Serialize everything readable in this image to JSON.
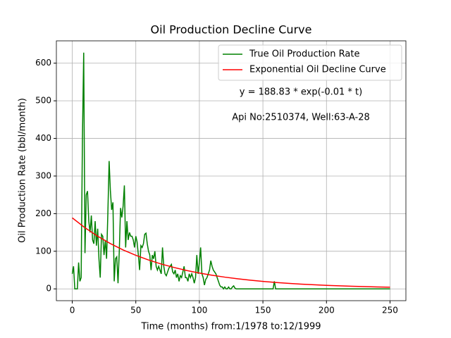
{
  "chart_data": {
    "type": "line",
    "title": "Oil Production Decline Curve",
    "xlabel": "Time (months) from:1/1978 to:12/1999",
    "ylabel": "Oil Production Rate (bbl/month)",
    "annotations": [
      "y = 188.83 * exp(-0.01 * t)",
      "Api No:2510374, Well:63-A-28"
    ],
    "xlim": [
      -12.5,
      262.5
    ],
    "ylim": [
      -31.4,
      659.4
    ],
    "xticks": [
      0,
      50,
      100,
      150,
      200,
      250
    ],
    "yticks": [
      0,
      100,
      200,
      300,
      400,
      500,
      600
    ],
    "grid": true,
    "legend": "upper right",
    "series": [
      {
        "name": "True Oil Production Rate",
        "color": "#008000",
        "x": [
          0,
          1,
          2,
          3,
          4,
          5,
          6,
          7,
          8,
          9,
          10,
          11,
          12,
          13,
          14,
          15,
          16,
          17,
          18,
          19,
          20,
          21,
          22,
          23,
          24,
          25,
          26,
          27,
          28,
          29,
          30,
          31,
          32,
          33,
          34,
          35,
          36,
          37,
          38,
          39,
          40,
          41,
          42,
          43,
          44,
          45,
          46,
          47,
          48,
          49,
          50,
          51,
          52,
          53,
          54,
          55,
          56,
          57,
          58,
          59,
          60,
          61,
          62,
          63,
          64,
          65,
          66,
          67,
          68,
          69,
          70,
          71,
          72,
          73,
          74,
          75,
          76,
          77,
          78,
          79,
          80,
          81,
          82,
          83,
          84,
          85,
          86,
          87,
          88,
          89,
          90,
          91,
          92,
          93,
          94,
          95,
          96,
          97,
          98,
          99,
          100,
          101,
          102,
          103,
          104,
          105,
          106,
          107,
          108,
          109,
          110,
          111,
          112,
          113,
          114,
          115,
          116,
          117,
          118,
          119,
          120,
          121,
          122,
          123,
          124,
          125,
          126,
          127,
          128,
          129,
          130,
          158,
          159,
          160,
          250
        ],
        "values": [
          40,
          60,
          0,
          0,
          0,
          70,
          20,
          30,
          400,
          628,
          95,
          250,
          260,
          180,
          150,
          195,
          130,
          120,
          180,
          115,
          160,
          80,
          30,
          145,
          140,
          90,
          130,
          80,
          200,
          340,
          260,
          210,
          230,
          20,
          80,
          85,
          15,
          100,
          215,
          190,
          220,
          275,
          110,
          180,
          130,
          150,
          140,
          140,
          130,
          110,
          140,
          125,
          90,
          50,
          115,
          110,
          120,
          145,
          148,
          120,
          100,
          90,
          50,
          90,
          80,
          100,
          60,
          50,
          60,
          50,
          40,
          110,
          60,
          40,
          35,
          45,
          55,
          60,
          65,
          45,
          40,
          50,
          30,
          40,
          20,
          35,
          30,
          45,
          60,
          30,
          30,
          20,
          40,
          30,
          40,
          30,
          15,
          30,
          90,
          40,
          70,
          110,
          40,
          30,
          10,
          25,
          30,
          40,
          50,
          75,
          60,
          50,
          45,
          40,
          30,
          20,
          10,
          5,
          5,
          0,
          5,
          0,
          0,
          5,
          0,
          0,
          5,
          8,
          2,
          0,
          0,
          0,
          20,
          0,
          0
        ]
      },
      {
        "name": "Exponential Oil Decline Curve",
        "color": "#ff0000",
        "x": [
          0,
          10,
          20,
          30,
          40,
          50,
          60,
          70,
          80,
          90,
          100,
          110,
          120,
          130,
          140,
          150,
          160,
          170,
          180,
          190,
          200,
          210,
          220,
          230,
          240,
          250
        ],
        "values": [
          188.8,
          162.5,
          139.9,
          120.4,
          103.6,
          89.2,
          76.8,
          66.1,
          56.9,
          48.9,
          42.1,
          36.3,
          31.2,
          26.9,
          23.1,
          19.9,
          17.1,
          14.7,
          12.7,
          10.9,
          9.4,
          8.1,
          7.0,
          6.0,
          5.2,
          4.4
        ]
      }
    ]
  }
}
